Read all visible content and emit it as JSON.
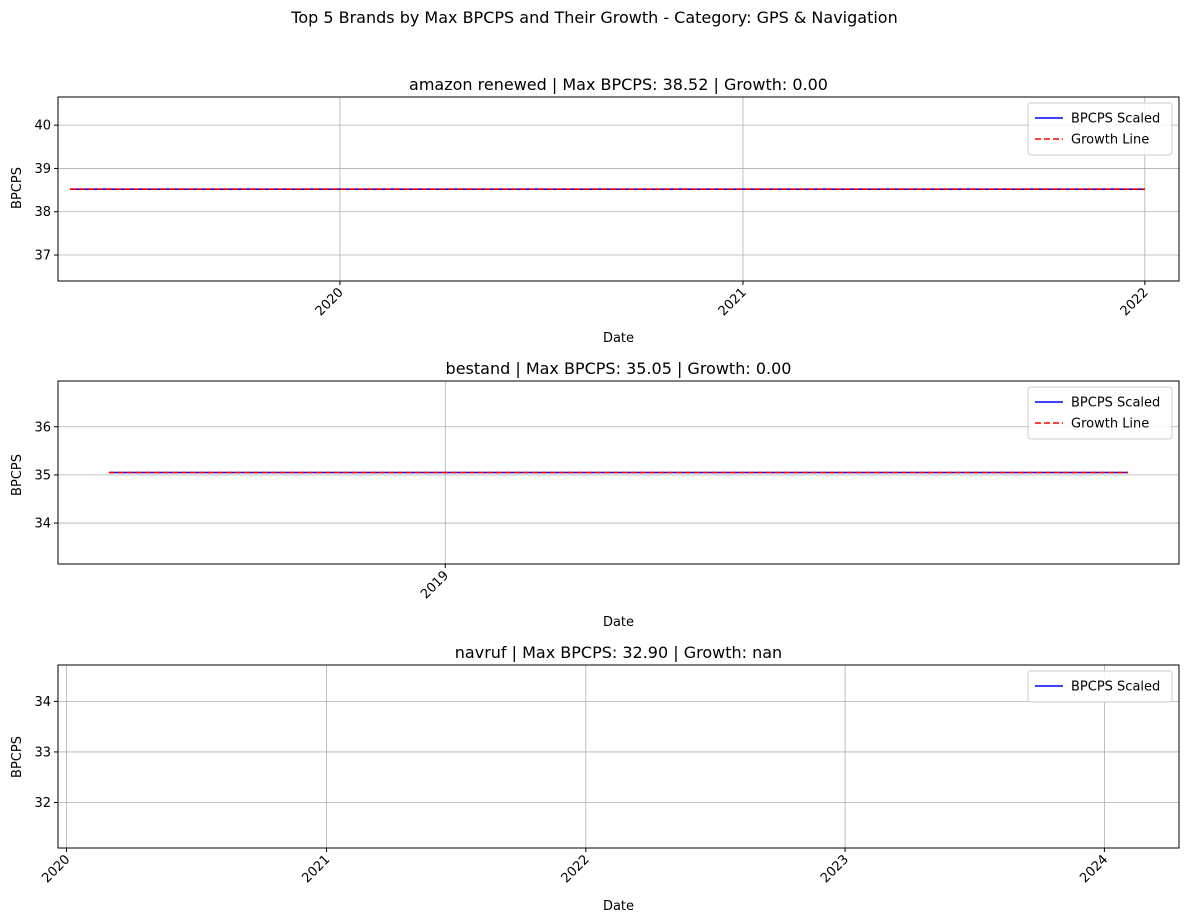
{
  "figure": {
    "suptitle": "Top 5 Brands by Max BPCPS and Their Growth - Category: GPS & Navigation"
  },
  "colors": {
    "series": "#0000ff",
    "growth": "#ff0000",
    "grid": "#b0b0b0",
    "axis": "#000000"
  },
  "chart_data": [
    {
      "type": "line",
      "title": "amazon renewed | Max BPCPS: 38.52 | Growth: 0.00",
      "xlabel": "Date",
      "ylabel": "BPCPS",
      "x_scale": "date",
      "xlim": [
        "2019-04-20",
        "2022-02-01"
      ],
      "ylim": [
        36.4,
        40.65
      ],
      "xticks": [
        {
          "x": "2020-01-01",
          "label": "2020"
        },
        {
          "x": "2021-01-01",
          "label": "2021"
        },
        {
          "x": "2022-01-01",
          "label": "2022"
        }
      ],
      "yticks": [
        37,
        38,
        39,
        40
      ],
      "grid": true,
      "legend": "upper right",
      "series": [
        {
          "name": "BPCPS Scaled",
          "style": "solid",
          "x": [
            "2019-05-01",
            "2022-01-01"
          ],
          "y": [
            38.52,
            38.52
          ]
        },
        {
          "name": "Growth Line",
          "style": "dashed",
          "x": [
            "2019-05-01",
            "2022-01-01"
          ],
          "y": [
            38.52,
            38.52
          ]
        }
      ]
    },
    {
      "type": "line",
      "title": "bestand | Max BPCPS: 35.05 | Growth: 0.00",
      "xlabel": "Date",
      "ylabel": "BPCPS",
      "x_scale": "index",
      "xlim": [
        -0.05,
        1.05
      ],
      "ylim": [
        33.15,
        36.95
      ],
      "xticks": [
        {
          "x": 0.33,
          "label": "2019"
        }
      ],
      "yticks": [
        34,
        35,
        36
      ],
      "grid": true,
      "legend": "upper right",
      "series": [
        {
          "name": "BPCPS Scaled",
          "style": "solid",
          "x": [
            0,
            1
          ],
          "y": [
            35.05,
            35.05
          ]
        },
        {
          "name": "Growth Line",
          "style": "dashed",
          "x": [
            0,
            1
          ],
          "y": [
            35.05,
            35.05
          ]
        }
      ]
    },
    {
      "type": "line",
      "title": "navruf | Max BPCPS: 32.90 | Growth: nan",
      "xlabel": "Date",
      "ylabel": "BPCPS",
      "x_scale": "date",
      "xlim": [
        "2019-12-20",
        "2024-04-15"
      ],
      "ylim": [
        31.1,
        34.72
      ],
      "xticks": [
        {
          "x": "2020-01-01",
          "label": "2020"
        },
        {
          "x": "2021-01-01",
          "label": "2021"
        },
        {
          "x": "2022-01-01",
          "label": "2022"
        },
        {
          "x": "2023-01-01",
          "label": "2023"
        },
        {
          "x": "2024-01-01",
          "label": "2024"
        }
      ],
      "yticks": [
        32,
        33,
        34
      ],
      "grid": true,
      "legend": "upper right",
      "series": [
        {
          "name": "BPCPS Scaled",
          "style": "solid",
          "x": [],
          "y": []
        }
      ]
    }
  ]
}
